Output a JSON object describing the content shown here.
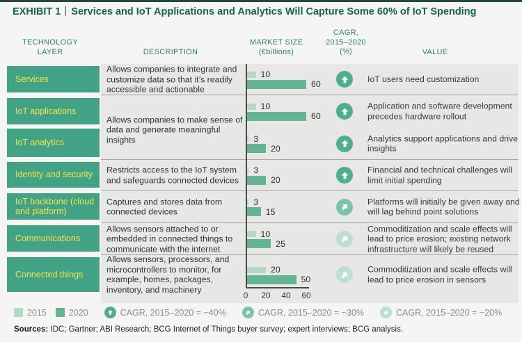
{
  "title": {
    "exhibit_label": "EXHIBIT 1",
    "separator": "|",
    "text": "Services and IoT Applications and Analytics Will Capture Some 60% of IoT Spending"
  },
  "columns": {
    "technology": "TECHNOLOGY\nLAYER",
    "description": "DESCRIPTION",
    "market_size": "MARKET SIZE\n(€billions)",
    "cagr": "CAGR,\n2015–2020\n(%)",
    "value": "VALUE"
  },
  "chart_data": {
    "type": "bar",
    "orientation": "horizontal",
    "axis_unit": "€billions",
    "series_names": [
      "2015",
      "2020"
    ],
    "x_ticks": [
      0,
      20,
      40,
      60
    ],
    "xlim": [
      0,
      60
    ],
    "rows": [
      {
        "layer": "Services",
        "description": "Allows companies to integrate and customize data so that it’s readily accessible and actionable",
        "v2015": 10,
        "v2020": 60,
        "cagr": "~40%",
        "arrow": "up",
        "value": "IoT users need customization"
      },
      {
        "layer": "IoT applications",
        "description": "Allows companies to make sense of data and generate meaningful insights",
        "v2015": 10,
        "v2020": 60,
        "cagr": "~40%",
        "arrow": "up",
        "value": "Application and software development precedes hardware rollout"
      },
      {
        "layer": "IoT analytics",
        "description": "Allows companies to make sense of data and generate meaningful insights",
        "v2015": 3,
        "v2020": 20,
        "cagr": "~40%",
        "arrow": "up",
        "value": "Analytics support applications and drive insights"
      },
      {
        "layer": "Identity and security",
        "description": "Restricts access to the IoT system and safeguards connected devices",
        "v2015": 3,
        "v2020": 20,
        "cagr": "~40%",
        "arrow": "up",
        "value": "Financial and technical challenges will limit initial spending"
      },
      {
        "layer": "IoT backbone (cloud and platform)",
        "description": "Captures and stores data from connected devices",
        "v2015": 3,
        "v2020": 15,
        "cagr": "~30%",
        "arrow": "up-right",
        "value": "Platforms will initially be given away and will lag behind point solutions"
      },
      {
        "layer": "Communications",
        "description": "Allows sensors attached to or embedded in connected things to communicate with the internet",
        "v2015": 10,
        "v2020": 25,
        "cagr": "~20%",
        "arrow": "up-right",
        "value": "Commoditization and scale effects will lead to price erosion; existing network infrastructure will likely be reused"
      },
      {
        "layer": "Connected things",
        "description": "Allows sensors, processors, and microcontrollers to monitor, for example, homes, packages, inventory, and machinery",
        "v2015": 20,
        "v2020": 50,
        "cagr": "~20%",
        "arrow": "up-right",
        "value": "Commoditization and scale effects will lead to price erosion in sensors"
      }
    ]
  },
  "legend": {
    "s2015": "2015",
    "s2020": "2020",
    "cagr40": "CAGR, 2015–2020 = ~40%",
    "cagr30": "CAGR, 2015–2020 = ~30%",
    "cagr20": "CAGR, 2015–2020 = ~20%"
  },
  "sources": {
    "label": "Sources:",
    "text": " IDC; Gartner; ABI Research; BCG Internet of Things buyer survey; expert interviews; BCG analysis."
  },
  "colors": {
    "title-green": "#17624E",
    "header-teal": "#2E8168",
    "box-green": "#42A285",
    "label-yellow": "#F2E44C",
    "bar-2015": "#B5D7C6",
    "bar-2020": "#62B492",
    "cagr-40": "#4FAE8D",
    "cagr-30": "#7AC3A6",
    "cagr-20": "#BCDFCF",
    "toprule": "#24463B"
  }
}
